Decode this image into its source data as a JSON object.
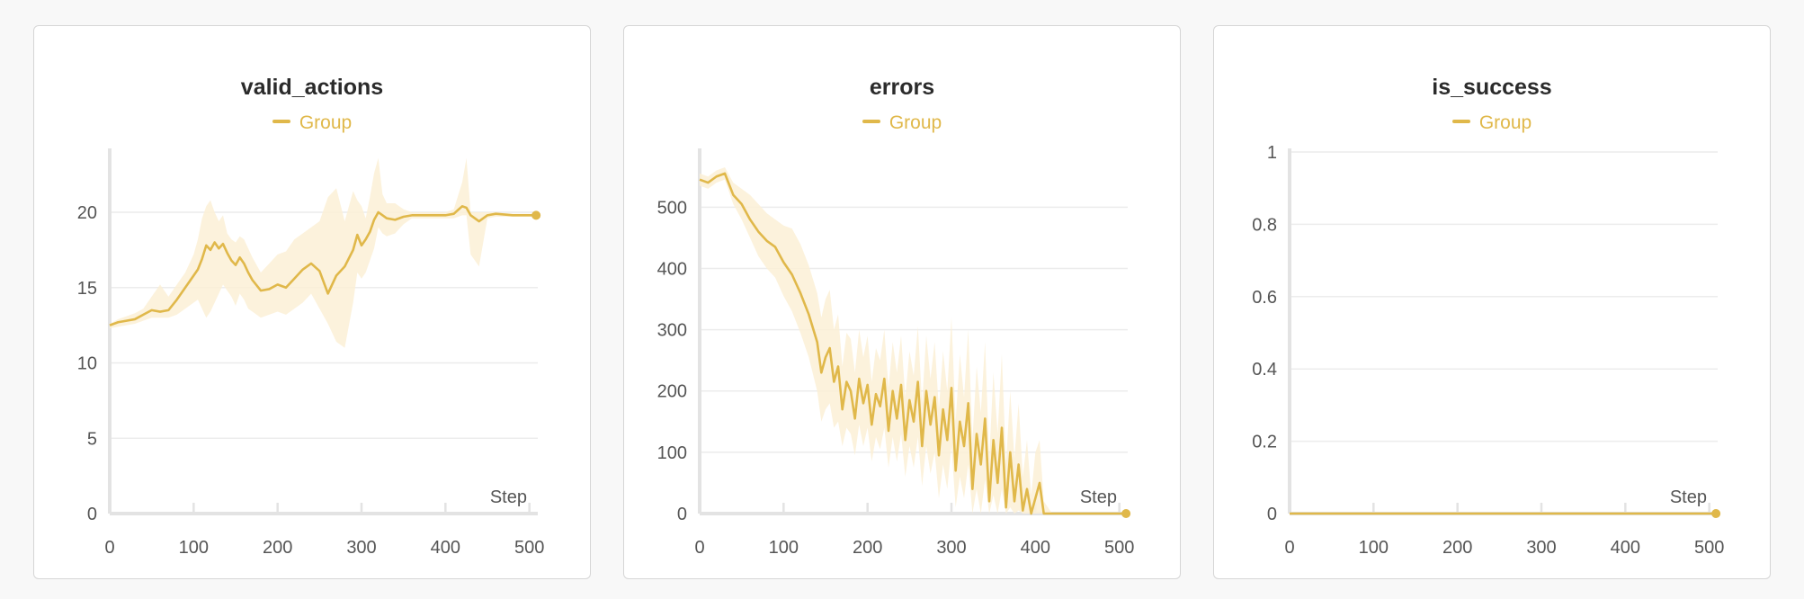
{
  "colors": {
    "series": "#e0b84a",
    "band": "#fbf0d6",
    "grid": "#ececec",
    "axis": "#e3e3e3"
  },
  "chart_data": [
    {
      "type": "line",
      "title": "valid_actions",
      "xlabel": "Step",
      "legend": [
        "Group"
      ],
      "xlim": [
        0,
        510
      ],
      "ylim": [
        0,
        24
      ],
      "xticks": [
        0,
        100,
        200,
        300,
        400,
        500
      ],
      "yticks": [
        0,
        5,
        10,
        15,
        20
      ],
      "series": [
        {
          "name": "Group",
          "x": [
            0,
            10,
            20,
            30,
            40,
            50,
            60,
            70,
            80,
            90,
            100,
            105,
            110,
            115,
            120,
            125,
            130,
            135,
            140,
            145,
            150,
            155,
            160,
            165,
            170,
            180,
            190,
            200,
            210,
            220,
            230,
            240,
            250,
            260,
            270,
            280,
            290,
            295,
            300,
            305,
            310,
            315,
            320,
            325,
            330,
            340,
            350,
            360,
            380,
            400,
            410,
            420,
            425,
            430,
            440,
            450,
            460,
            480,
            500,
            508
          ],
          "y": [
            12.5,
            12.7,
            12.8,
            12.9,
            13.2,
            13.5,
            13.4,
            13.5,
            14.2,
            15.0,
            15.8,
            16.2,
            16.9,
            17.8,
            17.5,
            18.0,
            17.6,
            17.9,
            17.3,
            16.8,
            16.5,
            17.0,
            16.6,
            16.0,
            15.5,
            14.8,
            14.9,
            15.2,
            15.0,
            15.6,
            16.2,
            16.6,
            16.1,
            14.6,
            15.8,
            16.4,
            17.5,
            18.5,
            17.8,
            18.2,
            18.7,
            19.5,
            20.0,
            19.8,
            19.6,
            19.5,
            19.7,
            19.8,
            19.8,
            19.8,
            19.9,
            20.4,
            20.3,
            19.8,
            19.4,
            19.8,
            19.9,
            19.8,
            19.8,
            19.8
          ],
          "band_low": [
            12.3,
            12.4,
            12.5,
            12.6,
            12.8,
            13.0,
            13.0,
            13.0,
            13.2,
            13.6,
            14.0,
            14.2,
            13.6,
            13.0,
            13.4,
            14.0,
            14.6,
            15.2,
            14.8,
            14.4,
            13.8,
            14.6,
            14.2,
            13.6,
            13.4,
            13.0,
            13.2,
            13.4,
            13.2,
            13.6,
            14.0,
            14.6,
            13.6,
            12.6,
            11.4,
            11.0,
            14.0,
            16.0,
            15.6,
            16.0,
            16.8,
            17.6,
            19.0,
            18.6,
            18.4,
            18.6,
            19.2,
            19.6,
            19.6,
            19.6,
            19.6,
            19.8,
            19.8,
            17.2,
            16.4,
            19.6,
            19.7,
            19.7,
            19.7,
            19.7
          ],
          "band_high": [
            12.6,
            12.9,
            13.1,
            13.3,
            13.6,
            14.4,
            15.2,
            14.4,
            15.2,
            16.0,
            17.2,
            18.2,
            19.6,
            20.4,
            20.8,
            20.0,
            19.4,
            19.8,
            18.6,
            18.2,
            18.0,
            18.4,
            18.2,
            17.6,
            17.0,
            16.0,
            16.6,
            17.2,
            17.4,
            18.2,
            18.6,
            19.0,
            19.4,
            21.0,
            21.6,
            19.4,
            21.4,
            20.8,
            20.4,
            19.6,
            21.0,
            22.6,
            23.6,
            21.2,
            20.6,
            20.6,
            20.2,
            20.0,
            20.0,
            20.0,
            20.2,
            22.0,
            23.6,
            20.0,
            20.0,
            20.0,
            20.0,
            19.9,
            19.9,
            19.9
          ]
        }
      ]
    },
    {
      "type": "line",
      "title": "errors",
      "xlabel": "Step",
      "legend": [
        "Group"
      ],
      "xlim": [
        0,
        510
      ],
      "ylim": [
        0,
        590
      ],
      "xticks": [
        0,
        100,
        200,
        300,
        400,
        500
      ],
      "yticks": [
        0,
        100,
        200,
        300,
        400,
        500
      ],
      "series": [
        {
          "name": "Group",
          "x": [
            0,
            10,
            20,
            30,
            40,
            50,
            60,
            70,
            80,
            90,
            100,
            110,
            120,
            130,
            140,
            145,
            150,
            155,
            160,
            165,
            170,
            175,
            180,
            185,
            190,
            195,
            200,
            205,
            210,
            215,
            220,
            225,
            230,
            235,
            240,
            245,
            250,
            255,
            260,
            265,
            270,
            275,
            280,
            285,
            290,
            295,
            300,
            305,
            310,
            315,
            320,
            325,
            330,
            335,
            340,
            345,
            350,
            355,
            360,
            365,
            370,
            375,
            380,
            385,
            390,
            395,
            400,
            405,
            410,
            420,
            440,
            460,
            480,
            500,
            508
          ],
          "y": [
            545,
            540,
            550,
            555,
            520,
            505,
            480,
            460,
            445,
            435,
            410,
            390,
            360,
            325,
            280,
            230,
            255,
            270,
            215,
            240,
            170,
            215,
            200,
            155,
            220,
            180,
            210,
            145,
            195,
            175,
            220,
            135,
            200,
            155,
            210,
            120,
            185,
            150,
            215,
            110,
            200,
            145,
            190,
            95,
            170,
            120,
            205,
            70,
            150,
            110,
            180,
            40,
            130,
            80,
            155,
            20,
            120,
            50,
            140,
            10,
            100,
            20,
            80,
            5,
            40,
            0,
            25,
            50,
            0,
            0,
            0,
            0,
            0,
            0,
            0
          ],
          "band_low": [
            535,
            530,
            540,
            545,
            505,
            480,
            450,
            420,
            400,
            385,
            355,
            330,
            295,
            255,
            200,
            150,
            170,
            180,
            140,
            150,
            110,
            140,
            130,
            95,
            145,
            110,
            140,
            85,
            125,
            105,
            140,
            75,
            125,
            85,
            130,
            60,
            110,
            75,
            125,
            45,
            110,
            65,
            100,
            25,
            80,
            40,
            110,
            10,
            60,
            25,
            80,
            0,
            40,
            0,
            55,
            0,
            30,
            0,
            40,
            0,
            10,
            0,
            5,
            0,
            0,
            0,
            0,
            0,
            0,
            0,
            0,
            0,
            0,
            0,
            0
          ],
          "band_high": [
            555,
            550,
            560,
            565,
            540,
            530,
            520,
            505,
            490,
            480,
            470,
            465,
            440,
            405,
            360,
            320,
            350,
            365,
            300,
            325,
            240,
            295,
            285,
            230,
            300,
            255,
            290,
            215,
            270,
            250,
            300,
            205,
            280,
            230,
            290,
            190,
            265,
            225,
            305,
            180,
            290,
            220,
            280,
            170,
            265,
            200,
            320,
            150,
            260,
            190,
            300,
            120,
            240,
            165,
            280,
            90,
            230,
            130,
            260,
            80,
            200,
            90,
            180,
            60,
            120,
            30,
            100,
            120,
            20,
            0,
            0,
            0,
            0,
            0,
            0
          ]
        }
      ]
    },
    {
      "type": "line",
      "title": "is_success",
      "xlabel": "Step",
      "legend": [
        "Group"
      ],
      "xlim": [
        0,
        510
      ],
      "ylim": [
        0,
        1
      ],
      "xticks": [
        0,
        100,
        200,
        300,
        400,
        500
      ],
      "yticks": [
        0,
        0.2,
        0.4,
        0.6,
        0.8,
        1
      ],
      "series": [
        {
          "name": "Group",
          "x": [
            0,
            100,
            200,
            300,
            400,
            508
          ],
          "y": [
            0,
            0,
            0,
            0,
            0,
            0
          ],
          "band_low": [
            0,
            0,
            0,
            0,
            0,
            0
          ],
          "band_high": [
            0,
            0,
            0,
            0,
            0,
            0
          ]
        }
      ]
    }
  ]
}
